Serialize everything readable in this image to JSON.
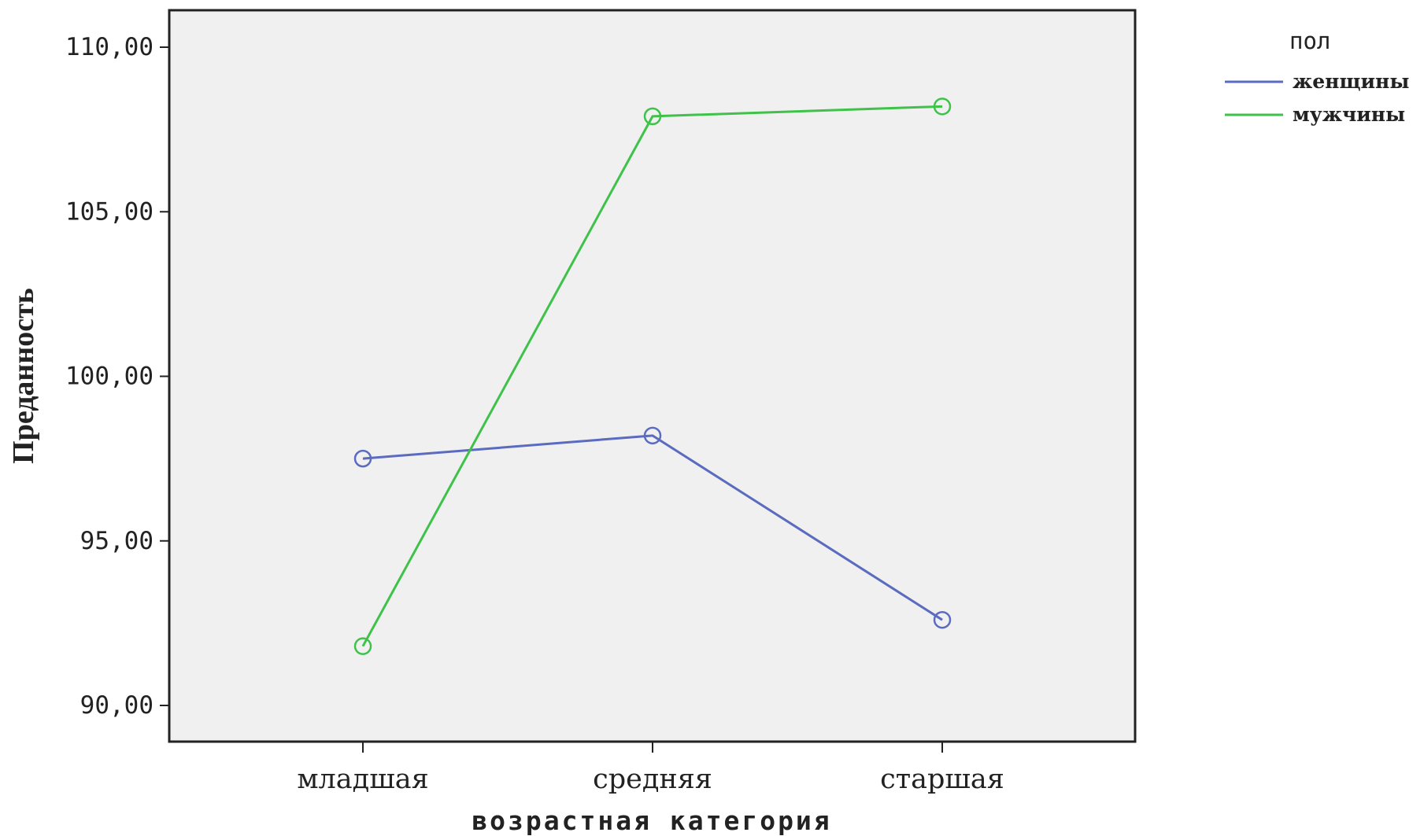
{
  "chart_data": {
    "type": "line",
    "categories": [
      "младшая",
      "средняя",
      "старшая"
    ],
    "series": [
      {
        "name": "женщины",
        "color": "#5b6bbf",
        "values": [
          97.5,
          98.2,
          92.6
        ]
      },
      {
        "name": "мужчины",
        "color": "#3ec24a",
        "values": [
          91.8,
          107.9,
          108.2
        ]
      }
    ],
    "xlabel": "возрастная категория",
    "ylabel": "Преданность",
    "ylim": [
      90,
      110
    ],
    "yticks": [
      90,
      95,
      100,
      105,
      110
    ],
    "ytick_labels": [
      "90,00",
      "95,00",
      "100,00",
      "105,00",
      "110,00"
    ],
    "legend": {
      "title": "пол",
      "position": "top-right"
    },
    "plot_background": "#f0f0f0",
    "grid": false,
    "markers": "open-circle"
  }
}
